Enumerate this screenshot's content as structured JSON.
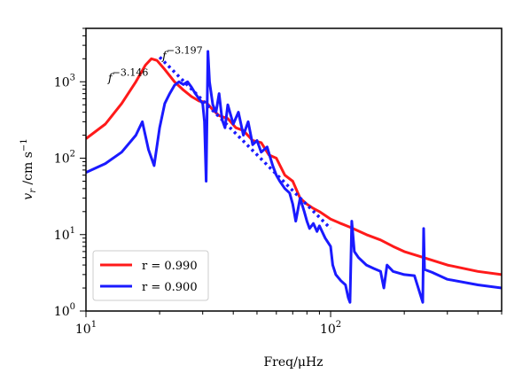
{
  "chart_data": {
    "type": "line",
    "xscale": "log",
    "yscale": "log",
    "xlim": [
      10,
      500
    ],
    "ylim": [
      1,
      5000
    ],
    "xlabel": "Freq/μHz",
    "ylabel_main": "v",
    "ylabel_sub": "r",
    "ylabel_unit": " /cm s",
    "ylabel_sup": "−1",
    "x_ticks": [
      {
        "value": 10,
        "base": "10",
        "exp": "1"
      },
      {
        "value": 100,
        "base": "10",
        "exp": "2"
      }
    ],
    "y_ticks": [
      {
        "value": 1,
        "base": "10",
        "exp": "0"
      },
      {
        "value": 10,
        "base": "10",
        "exp": "1"
      },
      {
        "value": 100,
        "base": "10",
        "exp": "2"
      },
      {
        "value": 1000,
        "base": "10",
        "exp": "3"
      }
    ],
    "annotations": [
      {
        "text_base": "f",
        "text_exp": "−3.146",
        "x": 12.3,
        "y": 1000
      },
      {
        "text_base": "f",
        "text_exp": "−3.197",
        "x": 20.5,
        "y": 1950
      }
    ],
    "legend_position": "lower-left",
    "series": [
      {
        "name": "r = 0.990",
        "color": "#ff1a1a",
        "style": "solid",
        "x": [
          10,
          12,
          14,
          16,
          17.5,
          18.5,
          19.5,
          21,
          23,
          25,
          27,
          29,
          31,
          33,
          35,
          38,
          41,
          44,
          48,
          52,
          56,
          60,
          65,
          70,
          75,
          80,
          85,
          90,
          100,
          110,
          120,
          140,
          160,
          180,
          200,
          240,
          300,
          400,
          500
        ],
        "y": [
          180,
          280,
          520,
          1000,
          1650,
          2000,
          1900,
          1450,
          1000,
          780,
          640,
          560,
          540,
          430,
          360,
          330,
          250,
          230,
          170,
          160,
          110,
          100,
          60,
          50,
          30,
          25,
          22,
          20,
          16,
          14,
          12.5,
          10,
          8.5,
          7,
          6,
          5,
          4,
          3.3,
          3
        ]
      },
      {
        "name": "r = 0.900",
        "color": "#1a1aff",
        "style": "solid",
        "x": [
          10,
          12,
          14,
          16,
          17,
          18,
          19,
          20,
          21,
          22,
          23,
          24,
          25,
          26,
          27,
          28,
          29,
          30,
          30.5,
          31,
          31.5,
          32,
          33,
          34,
          35,
          36,
          37,
          38,
          40,
          42,
          44,
          46,
          48,
          50,
          52,
          55,
          58,
          60,
          62,
          65,
          68,
          70,
          72,
          75,
          78,
          80,
          82,
          85,
          88,
          90,
          95,
          100,
          102,
          105,
          110,
          115,
          118,
          120,
          122,
          125,
          130,
          140,
          150,
          160,
          165,
          170,
          180,
          200,
          220,
          238,
          240,
          242,
          260,
          300,
          400,
          500
        ],
        "y": [
          65,
          85,
          120,
          200,
          300,
          130,
          80,
          250,
          520,
          700,
          900,
          1000,
          920,
          1000,
          850,
          700,
          600,
          520,
          300,
          50,
          2500,
          1000,
          500,
          400,
          700,
          320,
          250,
          500,
          280,
          400,
          200,
          300,
          150,
          170,
          120,
          140,
          80,
          60,
          50,
          40,
          35,
          25,
          15,
          30,
          20,
          15,
          12,
          14,
          11,
          13,
          9,
          7,
          4,
          3,
          2.5,
          2.2,
          1.5,
          1.3,
          15,
          6,
          5,
          4,
          3.6,
          3.3,
          2,
          4,
          3.3,
          3.0,
          2.9,
          1.3,
          12,
          3.5,
          3.2,
          2.6,
          2.2,
          2.0
        ]
      },
      {
        "name": "",
        "color": "#1a1aff",
        "style": "dotted",
        "x": [
          20,
          100
        ],
        "y": [
          2100,
          12
        ]
      }
    ]
  }
}
